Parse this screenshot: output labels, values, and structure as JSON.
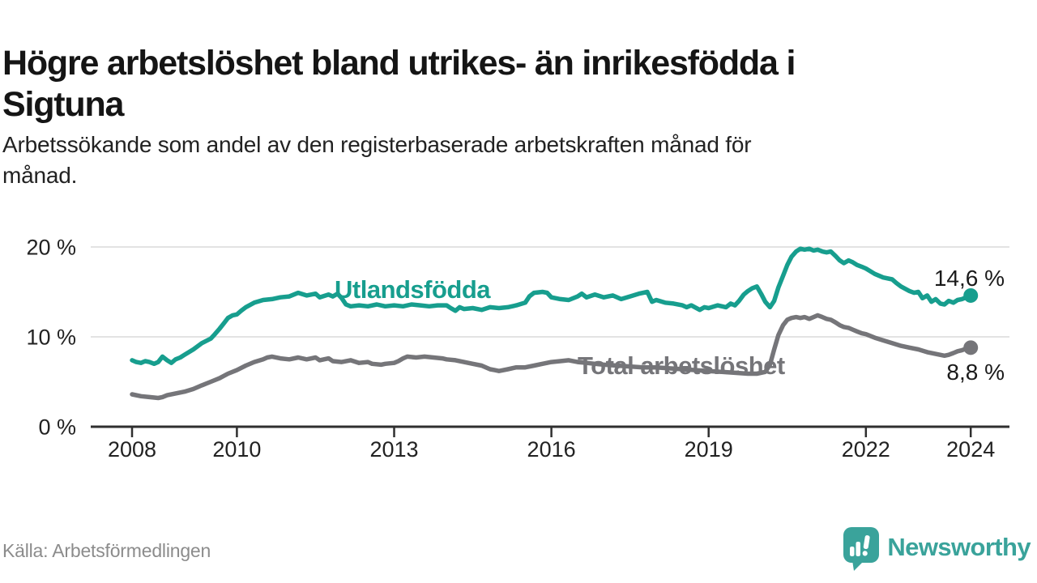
{
  "header": {
    "title": "Högre arbetslöshet bland utrikes- än inrikesfödda i Sigtuna",
    "title_lines": [
      "Högre arbetslöshet bland utrikes- än inrikesfödda i",
      "Sigtuna"
    ],
    "subtitle": "Arbetssökande som andel av den registerbaserade arbetskraften månad för månad.",
    "subtitle_lines": [
      "Arbetssökande som andel av den registerbaserade arbetskraften månad för",
      "månad."
    ]
  },
  "footer": {
    "source": "Källa: Arbetsförmedlingen",
    "logo_text": "Newsworthy",
    "logo_icon": "newsworthy-chart-bubble-icon"
  },
  "colors": {
    "series_foreign": "#179E8E",
    "series_total": "#757579",
    "axis": "#2F2F2F",
    "grid": "#E3E3E3",
    "tick_text": "#222222",
    "annotation_text": "#1A1A1A",
    "muted_text": "#8C8C8C",
    "logo_teal": "#3AA39B"
  },
  "chart_data": {
    "type": "line",
    "title": "Högre arbetslöshet bland utrikes- än inrikesfödda i Sigtuna",
    "xlabel": "",
    "ylabel": "",
    "unit": "%",
    "grid": "horizontal",
    "legend_position": "inline-labels",
    "x_axis": {
      "ticks": [
        2008,
        2010,
        2013,
        2016,
        2019,
        2022,
        2024
      ],
      "range": [
        2007.2,
        2024.7
      ]
    },
    "y_axis": {
      "ticks": [
        0,
        10,
        20
      ],
      "tick_labels": [
        "0 %",
        "10 %",
        "20 %"
      ],
      "range": [
        0,
        21.5
      ]
    },
    "series": [
      {
        "name": "Utlandsfödda",
        "color": "#179E8E",
        "end_value": 14.6,
        "end_label": "14,6 %",
        "points": [
          [
            2008.0,
            7.4
          ],
          [
            2008.08,
            7.2
          ],
          [
            2008.17,
            7.1
          ],
          [
            2008.25,
            7.3
          ],
          [
            2008.33,
            7.2
          ],
          [
            2008.42,
            7.0
          ],
          [
            2008.5,
            7.2
          ],
          [
            2008.58,
            7.8
          ],
          [
            2008.67,
            7.4
          ],
          [
            2008.75,
            7.1
          ],
          [
            2008.83,
            7.5
          ],
          [
            2008.92,
            7.7
          ],
          [
            2009.0,
            8.0
          ],
          [
            2009.17,
            8.6
          ],
          [
            2009.33,
            9.3
          ],
          [
            2009.5,
            9.8
          ],
          [
            2009.58,
            10.3
          ],
          [
            2009.67,
            10.9
          ],
          [
            2009.75,
            11.5
          ],
          [
            2009.83,
            12.1
          ],
          [
            2009.92,
            12.4
          ],
          [
            2010.0,
            12.5
          ],
          [
            2010.08,
            12.9
          ],
          [
            2010.17,
            13.3
          ],
          [
            2010.33,
            13.8
          ],
          [
            2010.5,
            14.1
          ],
          [
            2010.67,
            14.2
          ],
          [
            2010.83,
            14.4
          ],
          [
            2011.0,
            14.5
          ],
          [
            2011.17,
            14.9
          ],
          [
            2011.33,
            14.6
          ],
          [
            2011.5,
            14.8
          ],
          [
            2011.58,
            14.4
          ],
          [
            2011.75,
            14.7
          ],
          [
            2011.83,
            14.5
          ],
          [
            2011.92,
            14.8
          ],
          [
            2012.0,
            14.3
          ],
          [
            2012.08,
            13.6
          ],
          [
            2012.17,
            13.4
          ],
          [
            2012.33,
            13.5
          ],
          [
            2012.5,
            13.4
          ],
          [
            2012.67,
            13.6
          ],
          [
            2012.83,
            13.4
          ],
          [
            2013.0,
            13.5
          ],
          [
            2013.17,
            13.4
          ],
          [
            2013.33,
            13.6
          ],
          [
            2013.5,
            13.5
          ],
          [
            2013.67,
            13.4
          ],
          [
            2013.83,
            13.5
          ],
          [
            2014.0,
            13.5
          ],
          [
            2014.08,
            13.2
          ],
          [
            2014.17,
            12.9
          ],
          [
            2014.25,
            13.3
          ],
          [
            2014.33,
            13.1
          ],
          [
            2014.5,
            13.2
          ],
          [
            2014.67,
            13.0
          ],
          [
            2014.83,
            13.3
          ],
          [
            2015.0,
            13.2
          ],
          [
            2015.17,
            13.3
          ],
          [
            2015.33,
            13.5
          ],
          [
            2015.5,
            13.8
          ],
          [
            2015.58,
            14.5
          ],
          [
            2015.67,
            14.9
          ],
          [
            2015.83,
            15.0
          ],
          [
            2015.92,
            14.9
          ],
          [
            2016.0,
            14.4
          ],
          [
            2016.17,
            14.2
          ],
          [
            2016.33,
            14.1
          ],
          [
            2016.5,
            14.5
          ],
          [
            2016.58,
            14.8
          ],
          [
            2016.67,
            14.4
          ],
          [
            2016.83,
            14.7
          ],
          [
            2017.0,
            14.4
          ],
          [
            2017.17,
            14.6
          ],
          [
            2017.33,
            14.2
          ],
          [
            2017.5,
            14.5
          ],
          [
            2017.67,
            14.8
          ],
          [
            2017.83,
            15.0
          ],
          [
            2017.92,
            13.9
          ],
          [
            2018.0,
            14.1
          ],
          [
            2018.17,
            13.8
          ],
          [
            2018.33,
            13.7
          ],
          [
            2018.5,
            13.5
          ],
          [
            2018.58,
            13.3
          ],
          [
            2018.67,
            13.5
          ],
          [
            2018.83,
            13.0
          ],
          [
            2018.92,
            13.3
          ],
          [
            2019.0,
            13.2
          ],
          [
            2019.17,
            13.5
          ],
          [
            2019.33,
            13.3
          ],
          [
            2019.42,
            13.7
          ],
          [
            2019.5,
            13.5
          ],
          [
            2019.58,
            14.0
          ],
          [
            2019.67,
            14.7
          ],
          [
            2019.75,
            15.1
          ],
          [
            2019.83,
            15.4
          ],
          [
            2019.92,
            15.6
          ],
          [
            2020.0,
            14.8
          ],
          [
            2020.08,
            13.9
          ],
          [
            2020.17,
            13.3
          ],
          [
            2020.25,
            14.0
          ],
          [
            2020.33,
            15.5
          ],
          [
            2020.42,
            16.8
          ],
          [
            2020.5,
            18.0
          ],
          [
            2020.58,
            18.9
          ],
          [
            2020.67,
            19.5
          ],
          [
            2020.75,
            19.8
          ],
          [
            2020.83,
            19.7
          ],
          [
            2020.92,
            19.8
          ],
          [
            2021.0,
            19.6
          ],
          [
            2021.08,
            19.7
          ],
          [
            2021.17,
            19.5
          ],
          [
            2021.25,
            19.4
          ],
          [
            2021.33,
            19.5
          ],
          [
            2021.42,
            19.0
          ],
          [
            2021.5,
            18.5
          ],
          [
            2021.58,
            18.2
          ],
          [
            2021.67,
            18.5
          ],
          [
            2021.75,
            18.3
          ],
          [
            2021.83,
            18.0
          ],
          [
            2021.92,
            17.8
          ],
          [
            2022.0,
            17.6
          ],
          [
            2022.17,
            17.0
          ],
          [
            2022.33,
            16.6
          ],
          [
            2022.5,
            16.4
          ],
          [
            2022.58,
            16.0
          ],
          [
            2022.67,
            15.6
          ],
          [
            2022.83,
            15.1
          ],
          [
            2022.92,
            14.9
          ],
          [
            2023.0,
            15.0
          ],
          [
            2023.08,
            14.3
          ],
          [
            2023.17,
            14.6
          ],
          [
            2023.25,
            13.9
          ],
          [
            2023.33,
            14.2
          ],
          [
            2023.42,
            13.7
          ],
          [
            2023.5,
            13.6
          ],
          [
            2023.58,
            14.0
          ],
          [
            2023.67,
            13.8
          ],
          [
            2023.75,
            14.1
          ],
          [
            2023.83,
            14.2
          ],
          [
            2023.92,
            14.4
          ],
          [
            2024.0,
            14.6
          ]
        ]
      },
      {
        "name": "Total arbetslöshet",
        "color": "#757579",
        "end_value": 8.8,
        "end_label": "8,8 %",
        "points": [
          [
            2008.0,
            3.6
          ],
          [
            2008.17,
            3.4
          ],
          [
            2008.33,
            3.3
          ],
          [
            2008.5,
            3.2
          ],
          [
            2008.58,
            3.3
          ],
          [
            2008.67,
            3.5
          ],
          [
            2008.83,
            3.7
          ],
          [
            2009.0,
            3.9
          ],
          [
            2009.17,
            4.2
          ],
          [
            2009.33,
            4.6
          ],
          [
            2009.5,
            5.0
          ],
          [
            2009.67,
            5.4
          ],
          [
            2009.83,
            5.9
          ],
          [
            2010.0,
            6.3
          ],
          [
            2010.17,
            6.8
          ],
          [
            2010.33,
            7.2
          ],
          [
            2010.5,
            7.5
          ],
          [
            2010.58,
            7.7
          ],
          [
            2010.67,
            7.8
          ],
          [
            2010.83,
            7.6
          ],
          [
            2011.0,
            7.5
          ],
          [
            2011.17,
            7.7
          ],
          [
            2011.33,
            7.5
          ],
          [
            2011.5,
            7.7
          ],
          [
            2011.58,
            7.4
          ],
          [
            2011.75,
            7.6
          ],
          [
            2011.83,
            7.3
          ],
          [
            2012.0,
            7.2
          ],
          [
            2012.17,
            7.4
          ],
          [
            2012.33,
            7.1
          ],
          [
            2012.5,
            7.2
          ],
          [
            2012.58,
            7.0
          ],
          [
            2012.75,
            6.9
          ],
          [
            2012.83,
            7.0
          ],
          [
            2013.0,
            7.1
          ],
          [
            2013.08,
            7.3
          ],
          [
            2013.17,
            7.6
          ],
          [
            2013.25,
            7.8
          ],
          [
            2013.42,
            7.7
          ],
          [
            2013.58,
            7.8
          ],
          [
            2013.75,
            7.7
          ],
          [
            2013.92,
            7.6
          ],
          [
            2014.0,
            7.5
          ],
          [
            2014.17,
            7.4
          ],
          [
            2014.33,
            7.2
          ],
          [
            2014.5,
            7.0
          ],
          [
            2014.67,
            6.8
          ],
          [
            2014.83,
            6.4
          ],
          [
            2014.92,
            6.3
          ],
          [
            2015.0,
            6.2
          ],
          [
            2015.17,
            6.4
          ],
          [
            2015.33,
            6.6
          ],
          [
            2015.5,
            6.6
          ],
          [
            2015.67,
            6.8
          ],
          [
            2015.83,
            7.0
          ],
          [
            2016.0,
            7.2
          ],
          [
            2016.17,
            7.3
          ],
          [
            2016.33,
            7.4
          ],
          [
            2016.5,
            7.2
          ],
          [
            2016.67,
            7.1
          ],
          [
            2016.83,
            7.0
          ],
          [
            2017.0,
            6.9
          ],
          [
            2017.25,
            6.8
          ],
          [
            2017.5,
            6.7
          ],
          [
            2017.75,
            6.6
          ],
          [
            2018.0,
            6.6
          ],
          [
            2018.25,
            6.5
          ],
          [
            2018.5,
            6.4
          ],
          [
            2018.75,
            6.3
          ],
          [
            2019.0,
            6.2
          ],
          [
            2019.25,
            6.1
          ],
          [
            2019.5,
            6.0
          ],
          [
            2019.75,
            5.9
          ],
          [
            2019.92,
            5.9
          ],
          [
            2020.08,
            6.1
          ],
          [
            2020.17,
            6.9
          ],
          [
            2020.25,
            8.6
          ],
          [
            2020.33,
            10.2
          ],
          [
            2020.42,
            11.3
          ],
          [
            2020.5,
            11.9
          ],
          [
            2020.58,
            12.1
          ],
          [
            2020.67,
            12.2
          ],
          [
            2020.75,
            12.1
          ],
          [
            2020.83,
            12.2
          ],
          [
            2020.92,
            12.0
          ],
          [
            2021.0,
            12.2
          ],
          [
            2021.08,
            12.4
          ],
          [
            2021.17,
            12.2
          ],
          [
            2021.25,
            12.0
          ],
          [
            2021.33,
            11.9
          ],
          [
            2021.42,
            11.6
          ],
          [
            2021.5,
            11.3
          ],
          [
            2021.58,
            11.1
          ],
          [
            2021.67,
            11.0
          ],
          [
            2021.75,
            10.8
          ],
          [
            2021.83,
            10.6
          ],
          [
            2021.92,
            10.4
          ],
          [
            2022.0,
            10.3
          ],
          [
            2022.17,
            9.9
          ],
          [
            2022.33,
            9.6
          ],
          [
            2022.5,
            9.3
          ],
          [
            2022.67,
            9.0
          ],
          [
            2022.83,
            8.8
          ],
          [
            2023.0,
            8.6
          ],
          [
            2023.17,
            8.3
          ],
          [
            2023.33,
            8.1
          ],
          [
            2023.5,
            7.9
          ],
          [
            2023.58,
            8.0
          ],
          [
            2023.67,
            8.2
          ],
          [
            2023.75,
            8.4
          ],
          [
            2023.83,
            8.5
          ],
          [
            2023.92,
            8.7
          ],
          [
            2024.0,
            8.8
          ]
        ]
      }
    ]
  }
}
